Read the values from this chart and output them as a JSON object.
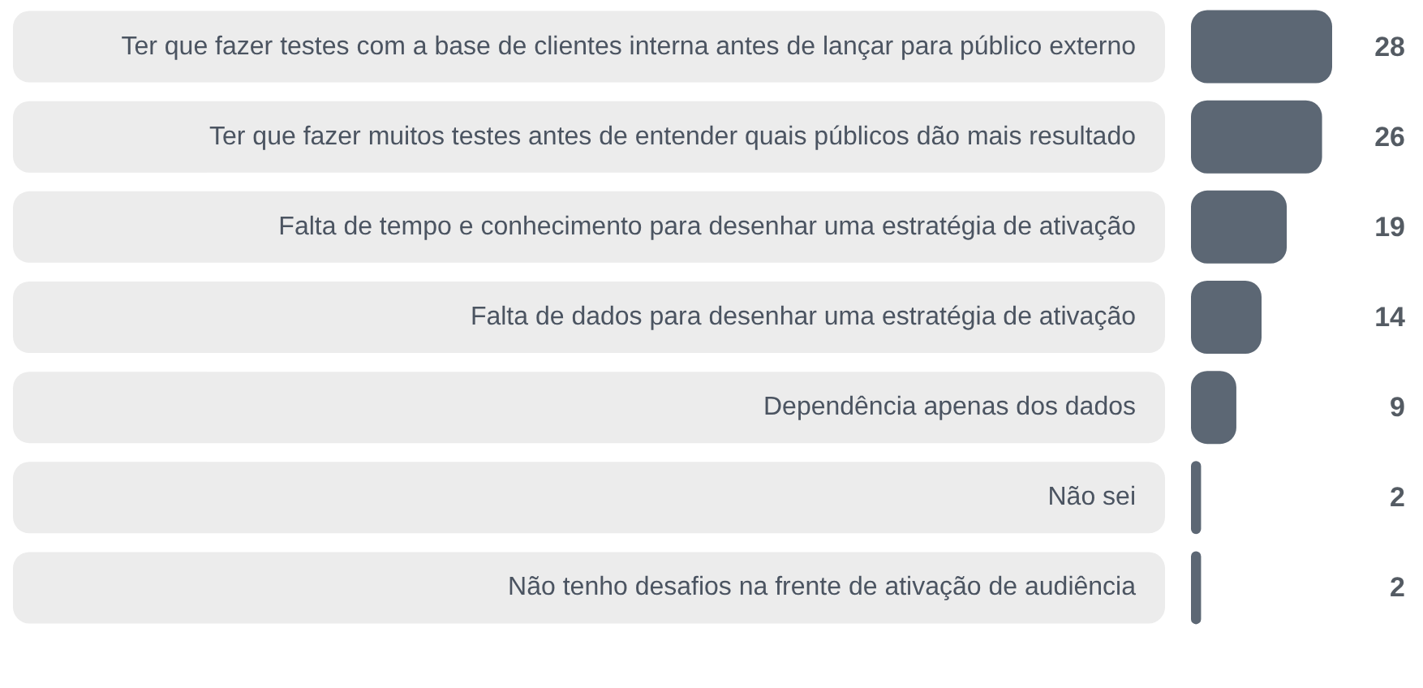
{
  "chart_data": {
    "type": "bar",
    "orientation": "horizontal",
    "categories": [
      "Ter que fazer testes com a base de clientes interna antes de lançar para público externo",
      "Ter que fazer muitos testes antes de entender quais públicos dão mais resultado",
      "Falta de tempo e conhecimento para desenhar uma estratégia de ativação",
      "Falta de dados para desenhar uma estratégia de ativação",
      "Dependência apenas dos dados",
      "Não sei",
      "Não tenho desafios na frente de ativação de audiência"
    ],
    "values": [
      28,
      26,
      19,
      14,
      9,
      2,
      2
    ],
    "color": "#5c6774",
    "data_labels": true
  }
}
